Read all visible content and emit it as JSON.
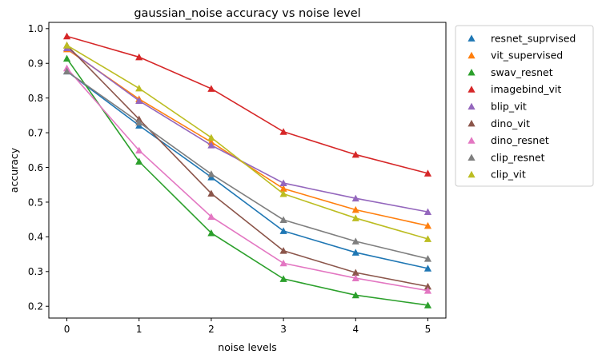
{
  "chart_data": {
    "type": "line",
    "title": "gaussian_noise accuracy vs noise level",
    "xlabel": "noise levels",
    "ylabel": "accuracy",
    "x": [
      0,
      1,
      2,
      3,
      4,
      5
    ],
    "xlim": [
      -0.25,
      5.25
    ],
    "ylim": [
      0.166,
      1.018
    ],
    "xticks": [
      0,
      1,
      2,
      3,
      4,
      5
    ],
    "yticks": [
      0.2,
      0.3,
      0.4,
      0.5,
      0.6,
      0.7,
      0.8,
      0.9,
      1.0
    ],
    "ytick_labels": [
      "0.2",
      "0.3",
      "0.4",
      "0.5",
      "0.6",
      "0.7",
      "0.8",
      "0.9",
      "1.0"
    ],
    "grid": false,
    "legend_position": "outside-right",
    "marker": "triangle",
    "series": [
      {
        "name": "resnet_suprvised",
        "color": "#1f77b4",
        "values": [
          0.877,
          0.721,
          0.572,
          0.417,
          0.355,
          0.309
        ]
      },
      {
        "name": "vit_supervised",
        "color": "#ff7f0e",
        "values": [
          0.941,
          0.797,
          0.673,
          0.539,
          0.478,
          0.432
        ]
      },
      {
        "name": "swav_resnet",
        "color": "#2ca02c",
        "values": [
          0.914,
          0.617,
          0.411,
          0.279,
          0.232,
          0.203
        ]
      },
      {
        "name": "imagebind_vit",
        "color": "#d62728",
        "values": [
          0.978,
          0.918,
          0.827,
          0.703,
          0.637,
          0.583
        ]
      },
      {
        "name": "blip_vit",
        "color": "#9467bd",
        "values": [
          0.944,
          0.792,
          0.664,
          0.555,
          0.511,
          0.472
        ]
      },
      {
        "name": "dino_vit",
        "color": "#8c564b",
        "values": [
          0.952,
          0.739,
          0.525,
          0.36,
          0.297,
          0.257
        ]
      },
      {
        "name": "dino_resnet",
        "color": "#e377c2",
        "values": [
          0.886,
          0.649,
          0.458,
          0.324,
          0.281,
          0.245
        ]
      },
      {
        "name": "clip_resnet",
        "color": "#7f7f7f",
        "values": [
          0.877,
          0.73,
          0.581,
          0.449,
          0.387,
          0.337
        ]
      },
      {
        "name": "clip_vit",
        "color": "#bcbd22",
        "values": [
          0.952,
          0.828,
          0.686,
          0.524,
          0.454,
          0.394
        ]
      }
    ]
  }
}
